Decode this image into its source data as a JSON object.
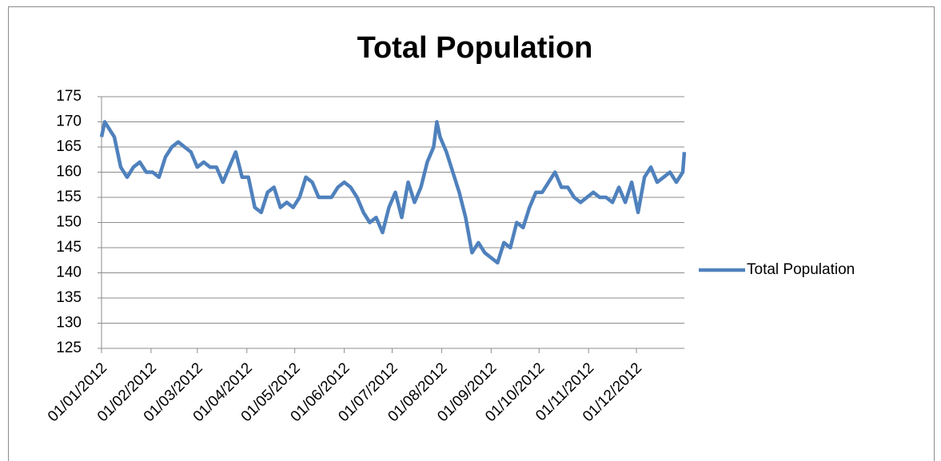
{
  "chart_data": {
    "type": "line",
    "title": "Total Population",
    "x": [
      "01/01/2012",
      "03/01/2012",
      "05/01/2012",
      "09/01/2012",
      "13/01/2012",
      "17/01/2012",
      "21/01/2012",
      "25/01/2012",
      "29/01/2012",
      "02/02/2012",
      "06/02/2012",
      "10/02/2012",
      "14/02/2012",
      "18/02/2012",
      "22/02/2012",
      "26/02/2012",
      "01/03/2012",
      "05/03/2012",
      "09/03/2012",
      "13/03/2012",
      "17/03/2012",
      "21/03/2012",
      "25/03/2012",
      "29/03/2012",
      "02/04/2012",
      "06/04/2012",
      "10/04/2012",
      "14/04/2012",
      "18/04/2012",
      "22/04/2012",
      "26/04/2012",
      "30/04/2012",
      "04/05/2012",
      "08/05/2012",
      "12/05/2012",
      "16/05/2012",
      "20/05/2012",
      "24/05/2012",
      "28/05/2012",
      "01/06/2012",
      "05/06/2012",
      "09/06/2012",
      "13/06/2012",
      "17/06/2012",
      "21/06/2012",
      "25/06/2012",
      "29/06/2012",
      "03/07/2012",
      "07/07/2012",
      "11/07/2012",
      "15/07/2012",
      "19/07/2012",
      "23/07/2012",
      "27/07/2012",
      "29/07/2012",
      "31/07/2012",
      "04/08/2012",
      "08/08/2012",
      "12/08/2012",
      "16/08/2012",
      "20/08/2012",
      "24/08/2012",
      "28/08/2012",
      "01/09/2012",
      "05/09/2012",
      "09/09/2012",
      "13/09/2012",
      "17/09/2012",
      "21/09/2012",
      "25/09/2012",
      "29/09/2012",
      "03/10/2012",
      "07/10/2012",
      "11/10/2012",
      "15/10/2012",
      "19/10/2012",
      "23/10/2012",
      "27/10/2012",
      "31/10/2012",
      "04/11/2012",
      "08/11/2012",
      "12/11/2012",
      "16/11/2012",
      "20/11/2012",
      "24/11/2012",
      "28/11/2012",
      "02/12/2012",
      "06/12/2012",
      "10/12/2012",
      "14/12/2012",
      "18/12/2012",
      "22/12/2012",
      "26/12/2012",
      "30/12/2012",
      "31/12/2012"
    ],
    "series": [
      {
        "name": "Total Population",
        "color": "#4f81bd",
        "values": [
          167,
          170,
          169,
          167,
          161,
          159,
          161,
          162,
          160,
          160,
          159,
          163,
          165,
          166,
          165,
          164,
          161,
          162,
          161,
          161,
          158,
          161,
          164,
          159,
          159,
          153,
          152,
          156,
          157,
          153,
          154,
          153,
          155,
          159,
          158,
          155,
          155,
          155,
          157,
          158,
          157,
          155,
          152,
          150,
          151,
          148,
          153,
          156,
          151,
          158,
          154,
          157,
          162,
          165,
          170,
          167,
          164,
          160,
          156,
          151,
          144,
          146,
          144,
          143,
          142,
          146,
          145,
          150,
          149,
          153,
          156,
          156,
          158,
          160,
          157,
          157,
          155,
          154,
          155,
          156,
          155,
          155,
          154,
          157,
          154,
          158,
          152,
          159,
          161,
          158,
          159,
          160,
          158,
          160,
          164
        ]
      }
    ],
    "xlim": [
      "01/01/2012",
      "31/12/2012"
    ],
    "xticks": [
      "01/01/2012",
      "01/02/2012",
      "01/03/2012",
      "01/04/2012",
      "01/05/2012",
      "01/06/2012",
      "01/07/2012",
      "01/08/2012",
      "01/09/2012",
      "01/10/2012",
      "01/11/2012",
      "01/12/2012"
    ],
    "ylim": [
      125,
      175
    ],
    "yticks": [
      125,
      130,
      135,
      140,
      145,
      150,
      155,
      160,
      165,
      170,
      175
    ],
    "grid": true,
    "legend": "right"
  }
}
